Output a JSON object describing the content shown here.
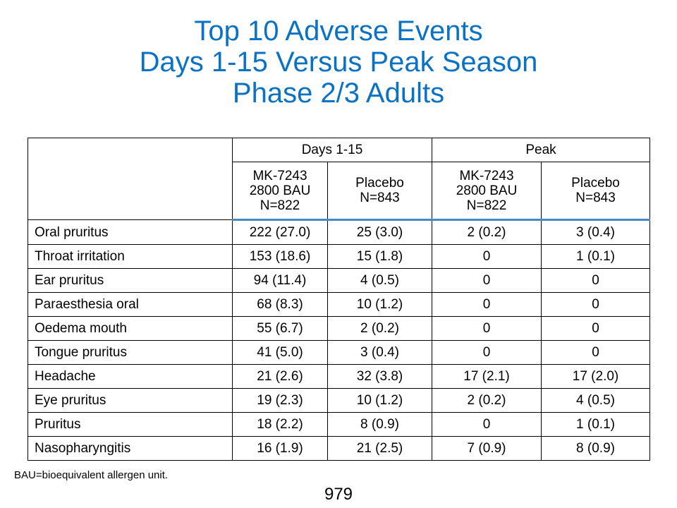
{
  "title": {
    "line1": "Top 10 Adverse Events",
    "line2": "Days 1-15 Versus Peak Season",
    "line3": "Phase 2/3 Adults"
  },
  "table": {
    "group_headers": [
      "Days 1-15",
      "Peak"
    ],
    "sub_headers": [
      [
        "MK-7243",
        "2800 BAU",
        "N=822"
      ],
      [
        "Placebo",
        "N=843"
      ],
      [
        "MK-7243",
        "2800 BAU",
        "N=822"
      ],
      [
        "Placebo",
        "N=843"
      ]
    ],
    "rows": [
      {
        "label": "Oral pruritus",
        "values": [
          "222 (27.0)",
          "25 (3.0)",
          "2 (0.2)",
          "3 (0.4)"
        ]
      },
      {
        "label": "Throat irritation",
        "values": [
          "153 (18.6)",
          "15 (1.8)",
          "0",
          "1 (0.1)"
        ]
      },
      {
        "label": "Ear pruritus",
        "values": [
          "94 (11.4)",
          "4 (0.5)",
          "0",
          "0"
        ]
      },
      {
        "label": "Paraesthesia oral",
        "values": [
          "68 (8.3)",
          "10 (1.2)",
          "0",
          "0"
        ]
      },
      {
        "label": "Oedema mouth",
        "values": [
          "55 (6.7)",
          "2 (0.2)",
          "0",
          "0"
        ]
      },
      {
        "label": "Tongue pruritus",
        "values": [
          "41 (5.0)",
          "3 (0.4)",
          "0",
          "0"
        ]
      },
      {
        "label": "Headache",
        "values": [
          "21 (2.6)",
          "32 (3.8)",
          "17 (2.1)",
          "17 (2.0)"
        ]
      },
      {
        "label": "Eye pruritus",
        "values": [
          "19 (2.3)",
          "10 (1.2)",
          "2 (0.2)",
          "4 (0.5)"
        ]
      },
      {
        "label": "Pruritus",
        "values": [
          "18 (2.2)",
          "8 (0.9)",
          "0",
          "1 (0.1)"
        ]
      },
      {
        "label": "Nasopharyngitis",
        "values": [
          "16 (1.9)",
          "21 (2.5)",
          "7 (0.9)",
          "8 (0.9)"
        ]
      }
    ]
  },
  "footnote": "BAU=bioequivalent allergen unit.",
  "page_number": "979",
  "colors": {
    "title": "#0a72c4",
    "header_rule": "#4a86c8"
  }
}
